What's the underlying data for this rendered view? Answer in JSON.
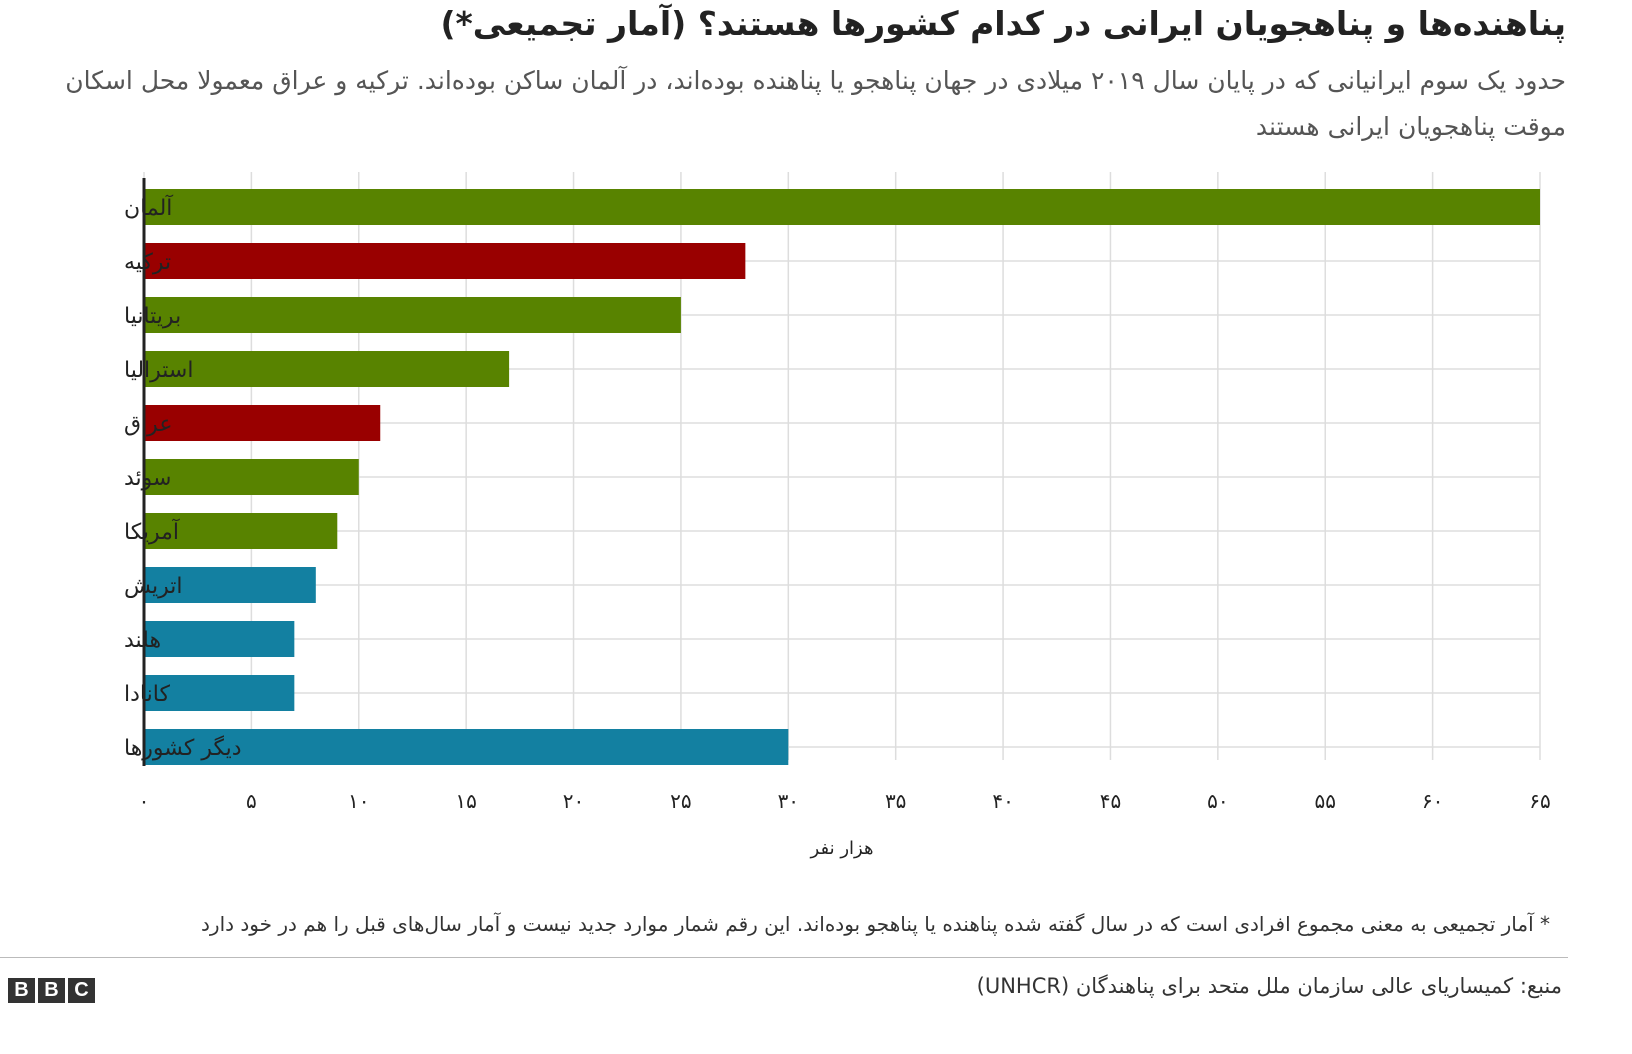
{
  "header": {
    "title": "پناهنده‌ها و پناهجویان ایرانی در کدام کشورها هستند؟ (آمار تجمیعی*)",
    "subtitle": "حدود یک سوم ایرانیانی که در پایان سال ۲۰۱۹ میلادی در جهان پناهجو یا پناهنده بوده‌اند، در آلمان ساکن بوده‌اند. ترکیه و عراق معمولا محل اسکان موقت پناهجویان ایرانی هستند"
  },
  "chart_data": {
    "type": "bar",
    "orientation": "horizontal",
    "categories": [
      "آلمان",
      "ترکیه",
      "بریتانیا",
      "استرالیا",
      "عراق",
      "سوئد",
      "آمریکا",
      "اتریش",
      "هلند",
      "کانادا",
      "دیگر کشورها"
    ],
    "values": [
      65,
      28,
      25,
      17,
      11,
      10,
      9,
      8,
      7,
      7,
      30
    ],
    "colors": [
      "#588300",
      "#990000",
      "#588300",
      "#588300",
      "#990000",
      "#588300",
      "#588300",
      "#1380a1",
      "#1380a1",
      "#1380a1",
      "#1380a1"
    ],
    "xlabel": "هزار نفر",
    "xlim": [
      0,
      65
    ],
    "ticks": [
      0,
      5,
      10,
      15,
      20,
      25,
      30,
      35,
      40,
      45,
      50,
      55,
      60,
      65
    ],
    "tick_labels": [
      "۰",
      "۵",
      "۱۰",
      "۱۵",
      "۲۰",
      "۲۵",
      "۳۰",
      "۳۵",
      "۴۰",
      "۴۵",
      "۵۰",
      "۵۵",
      "۶۰",
      "۶۵"
    ],
    "grid": true
  },
  "footer": {
    "note": "* آمار تجمیعی به معنی مجموع افرادی است که در سال گفته شده پناهنده یا پناهجو بوده‌اند. این رقم شمار موارد جدید نیست و آمار سال‌های قبل را هم در خود دارد",
    "source": "منبع: کمیساریای عالی سازمان ملل متحد برای پناهندگان (UNHCR)",
    "logo_letters": [
      "B",
      "B",
      "C"
    ]
  }
}
